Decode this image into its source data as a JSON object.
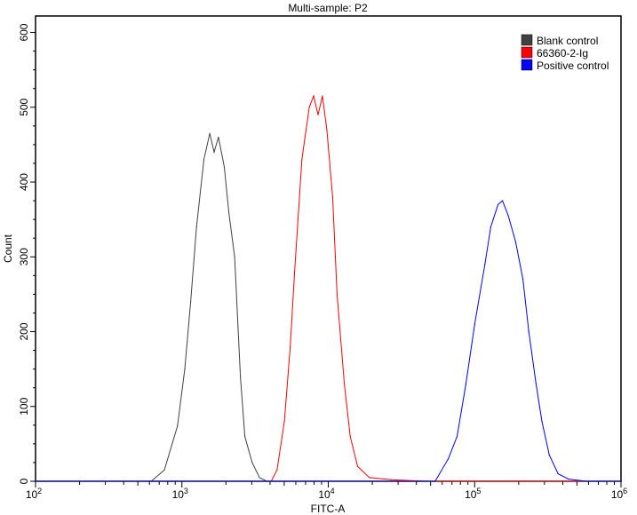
{
  "chart_data": {
    "type": "line",
    "title": "Multi-sample: P2",
    "xlabel": "FITC-A",
    "ylabel": "Count",
    "x_scale": "log10",
    "xlim_log10": [
      2,
      6
    ],
    "ylim": [
      0,
      622
    ],
    "x_ticks": [
      {
        "base": "10",
        "exp": "2",
        "v": 2
      },
      {
        "base": "10",
        "exp": "3",
        "v": 3
      },
      {
        "base": "10",
        "exp": "4",
        "v": 4
      },
      {
        "base": "10",
        "exp": "5",
        "v": 5
      },
      {
        "base": "10",
        "exp": "6",
        "v": 6
      }
    ],
    "y_ticks": [
      "0",
      "100",
      "200",
      "300",
      "400",
      "500",
      "600"
    ],
    "legend_position": "top-right",
    "series": [
      {
        "name": "Blank control",
        "color": "#404040",
        "x_log10": [
          2.79,
          2.88,
          2.97,
          3.02,
          3.06,
          3.1,
          3.15,
          3.19,
          3.22,
          3.25,
          3.29,
          3.32,
          3.36,
          3.4,
          3.43,
          3.48,
          3.53,
          3.58
        ],
        "values": [
          0,
          15,
          74,
          150,
          240,
          340,
          430,
          465,
          440,
          460,
          420,
          360,
          300,
          140,
          60,
          25,
          5,
          0
        ]
      },
      {
        "name": "66360-2-Ig",
        "color": "#ff0000",
        "x_log10": [
          3.61,
          3.65,
          3.7,
          3.74,
          3.77,
          3.82,
          3.87,
          3.9,
          3.93,
          3.96,
          3.99,
          4.03,
          4.06,
          4.11,
          4.15,
          4.2,
          4.28,
          4.43,
          4.67
        ],
        "values": [
          0,
          15,
          80,
          180,
          280,
          430,
          500,
          515,
          490,
          515,
          470,
          380,
          250,
          130,
          60,
          20,
          5,
          2,
          0
        ]
      },
      {
        "name": "Positive control",
        "color": "#0000ff",
        "x_log10": [
          4.73,
          4.82,
          4.88,
          4.94,
          5.0,
          5.07,
          5.11,
          5.16,
          5.19,
          5.23,
          5.28,
          5.33,
          5.37,
          5.42,
          5.46,
          5.51,
          5.57,
          5.64,
          5.76
        ],
        "values": [
          0,
          30,
          60,
          130,
          210,
          290,
          340,
          370,
          375,
          355,
          320,
          270,
          200,
          130,
          80,
          35,
          10,
          3,
          0
        ]
      }
    ]
  }
}
